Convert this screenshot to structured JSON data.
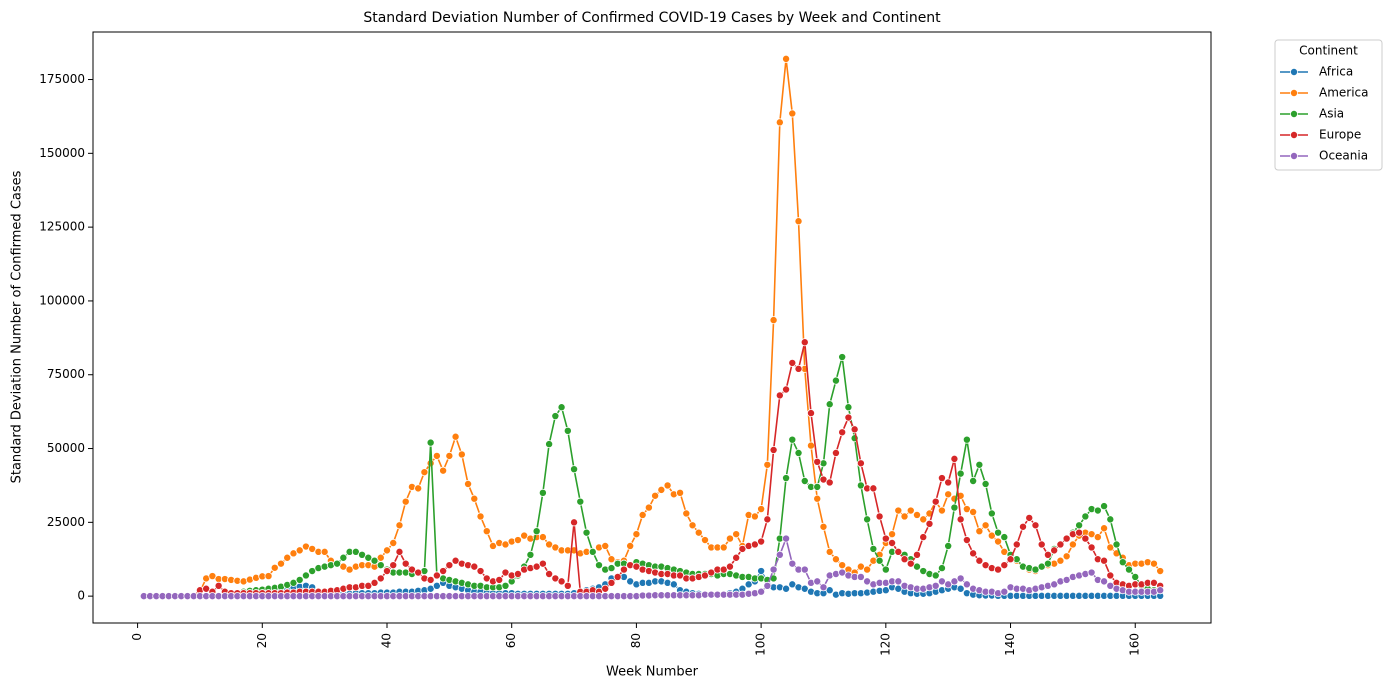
{
  "chart_data": {
    "type": "line",
    "title": "Standard Deviation Number of Confirmed COVID-19 Cases by Week and Continent",
    "x_label": "Week Number",
    "y_label": "Standard Deviation Number of Confirmed Cases",
    "legend_title": "Continent",
    "legend_position": "outside-upper-right",
    "marker": "circle",
    "xlim": [
      -7.15,
      172.15
    ],
    "ylim": [
      -9100,
      191100
    ],
    "xticks": [
      0,
      20,
      40,
      60,
      80,
      100,
      120,
      140,
      160
    ],
    "yticks": [
      0,
      25000,
      50000,
      75000,
      100000,
      125000,
      150000,
      175000
    ],
    "x": [
      1,
      2,
      3,
      4,
      5,
      6,
      7,
      8,
      9,
      10,
      11,
      12,
      13,
      14,
      15,
      16,
      17,
      18,
      19,
      20,
      21,
      22,
      23,
      24,
      25,
      26,
      27,
      28,
      29,
      30,
      31,
      32,
      33,
      34,
      35,
      36,
      37,
      38,
      39,
      40,
      41,
      42,
      43,
      44,
      45,
      46,
      47,
      48,
      49,
      50,
      51,
      52,
      53,
      54,
      55,
      56,
      57,
      58,
      59,
      60,
      61,
      62,
      63,
      64,
      65,
      66,
      67,
      68,
      69,
      70,
      71,
      72,
      73,
      74,
      75,
      76,
      77,
      78,
      79,
      80,
      81,
      82,
      83,
      84,
      85,
      86,
      87,
      88,
      89,
      90,
      91,
      92,
      93,
      94,
      95,
      96,
      97,
      98,
      99,
      100,
      101,
      102,
      103,
      104,
      105,
      106,
      107,
      108,
      109,
      110,
      111,
      112,
      113,
      114,
      115,
      116,
      117,
      118,
      119,
      120,
      121,
      122,
      123,
      124,
      125,
      126,
      127,
      128,
      129,
      130,
      131,
      132,
      133,
      134,
      135,
      136,
      137,
      138,
      139,
      140,
      141,
      142,
      143,
      144,
      145,
      146,
      147,
      148,
      149,
      150,
      151,
      152,
      153,
      154,
      155,
      156,
      157,
      158,
      159,
      160,
      161,
      162,
      163,
      164
    ],
    "series": [
      {
        "name": "Africa",
        "color": "#1f77b4",
        "values": [
          0,
          0,
          0,
          0,
          0,
          0,
          0,
          0,
          0,
          0,
          0,
          0,
          0,
          0,
          0,
          0,
          500,
          800,
          1000,
          1200,
          1500,
          1800,
          2000,
          2500,
          3000,
          3200,
          3500,
          3000,
          1500,
          1000,
          800,
          800,
          800,
          800,
          1000,
          1000,
          1000,
          1000,
          1200,
          1200,
          1200,
          1500,
          1500,
          1500,
          1800,
          2000,
          2500,
          3500,
          4500,
          3500,
          3000,
          2500,
          2000,
          1500,
          1500,
          1200,
          1000,
          1000,
          1000,
          1000,
          800,
          800,
          800,
          800,
          800,
          800,
          800,
          800,
          800,
          1000,
          1500,
          2000,
          2500,
          3000,
          4000,
          6000,
          6500,
          6500,
          5000,
          4000,
          4500,
          4500,
          5000,
          5000,
          4500,
          4000,
          2000,
          1500,
          1000,
          800,
          500,
          500,
          500,
          500,
          1000,
          1500,
          2500,
          4000,
          5000,
          8500,
          5000,
          3000,
          3000,
          2500,
          4000,
          3000,
          2500,
          1500,
          1000,
          1000,
          2000,
          500,
          1000,
          800,
          1000,
          1000,
          1200,
          1500,
          1800,
          2000,
          3000,
          2500,
          1500,
          1000,
          800,
          800,
          1000,
          1500,
          2000,
          2500,
          3000,
          2500,
          1000,
          500,
          300,
          200,
          200,
          100,
          100,
          100,
          100,
          100,
          100,
          100,
          100,
          100,
          100,
          100,
          100,
          100,
          100,
          100,
          100,
          100,
          100,
          100,
          100,
          100,
          100,
          100,
          100,
          100,
          100,
          100
        ]
      },
      {
        "name": "America",
        "color": "#ff7f0e",
        "values": [
          0,
          0,
          0,
          0,
          0,
          0,
          0,
          0,
          0,
          1500,
          6000,
          6800,
          5800,
          5800,
          5500,
          5200,
          5000,
          5600,
          6200,
          6700,
          6800,
          9600,
          11000,
          13000,
          14500,
          15500,
          16800,
          16000,
          15000,
          15000,
          12000,
          11000,
          10000,
          9000,
          10000,
          10500,
          10500,
          10000,
          13000,
          15500,
          18000,
          24000,
          32000,
          37000,
          36500,
          42000,
          45000,
          47500,
          42500,
          47500,
          54000,
          48000,
          38000,
          33000,
          27000,
          22000,
          17000,
          18000,
          17500,
          18500,
          19000,
          20500,
          19500,
          20000,
          20000,
          17500,
          16500,
          15500,
          15500,
          15500,
          14500,
          15000,
          15000,
          16500,
          17000,
          12500,
          11500,
          12000,
          17000,
          21000,
          27500,
          30000,
          34000,
          36000,
          37500,
          34500,
          35000,
          28000,
          24000,
          21500,
          19000,
          16500,
          16500,
          16500,
          19500,
          21000,
          17000,
          27500,
          27000,
          29500,
          44500,
          93500,
          160500,
          182000,
          163500,
          127000,
          77000,
          51000,
          33000,
          23500,
          15000,
          12500,
          10500,
          9000,
          8000,
          10000,
          9000,
          12000,
          14000,
          18000,
          21000,
          29000,
          27000,
          29000,
          27500,
          26000,
          28000,
          32000,
          29000,
          34500,
          33000,
          34000,
          29500,
          28500,
          22000,
          24000,
          20500,
          18500,
          15000,
          14000,
          12000,
          10000,
          9000,
          8500,
          10000,
          10500,
          11000,
          12000,
          13500,
          17500,
          20500,
          21500,
          21000,
          20000,
          23000,
          16500,
          14500,
          13000,
          10500,
          11000,
          11000,
          11500,
          11000,
          8500
        ]
      },
      {
        "name": "Asia",
        "color": "#2ca02c",
        "values": [
          0,
          0,
          0,
          0,
          0,
          0,
          0,
          0,
          0,
          0,
          0,
          0,
          0,
          0,
          0,
          0,
          1500,
          1800,
          2000,
          2200,
          2500,
          2800,
          3200,
          3800,
          4500,
          5500,
          7000,
          8500,
          9500,
          10000,
          10500,
          11000,
          13000,
          15000,
          15000,
          14000,
          13000,
          12000,
          10500,
          9000,
          8000,
          8000,
          8000,
          7500,
          8000,
          8500,
          52000,
          7000,
          6000,
          5500,
          5000,
          4500,
          4000,
          3500,
          3500,
          3000,
          3000,
          3000,
          3500,
          5000,
          7000,
          10000,
          14000,
          22000,
          35000,
          51500,
          61000,
          64000,
          56000,
          43000,
          32000,
          21500,
          15000,
          10500,
          9000,
          9500,
          11000,
          11000,
          10500,
          11500,
          11000,
          10500,
          10000,
          10000,
          9500,
          9000,
          8500,
          8000,
          7500,
          7500,
          7500,
          7500,
          7000,
          7500,
          7500,
          7000,
          6500,
          6500,
          6000,
          6000,
          5500,
          6000,
          19500,
          40000,
          53000,
          48500,
          39000,
          37000,
          37000,
          45000,
          65000,
          73000,
          81000,
          64000,
          53500,
          37500,
          26000,
          16000,
          12000,
          9000,
          15000,
          15000,
          14000,
          12500,
          10000,
          8500,
          7500,
          7000,
          9500,
          17000,
          30000,
          41500,
          53000,
          39000,
          44500,
          38000,
          28000,
          21500,
          20000,
          14000,
          12500,
          10000,
          9500,
          9000,
          10000,
          11000,
          16000,
          17500,
          19500,
          21500,
          24000,
          27000,
          29500,
          29000,
          30500,
          26000,
          17500,
          11500,
          9000,
          6500,
          3500,
          2500,
          2000,
          2000
        ]
      },
      {
        "name": "Europe",
        "color": "#d62728",
        "values": [
          0,
          0,
          0,
          0,
          0,
          0,
          0,
          0,
          0,
          2000,
          2500,
          1500,
          3500,
          1500,
          1000,
          1000,
          1000,
          1000,
          1000,
          1000,
          1000,
          1000,
          1000,
          1200,
          1200,
          1500,
          1500,
          1500,
          1500,
          1500,
          1800,
          2000,
          2500,
          3000,
          3000,
          3500,
          3500,
          4500,
          6000,
          8500,
          10500,
          15000,
          11000,
          9000,
          8000,
          6000,
          5500,
          7000,
          8500,
          10500,
          12000,
          11000,
          10500,
          10000,
          8500,
          6000,
          5000,
          5500,
          8000,
          7000,
          7500,
          9000,
          9500,
          10000,
          11000,
          7500,
          6000,
          5000,
          3500,
          25000,
          1500,
          1500,
          2000,
          1500,
          2500,
          4500,
          6500,
          9000,
          10500,
          10000,
          9000,
          8500,
          8000,
          7500,
          7500,
          7000,
          7000,
          6000,
          6000,
          6500,
          7000,
          8000,
          9000,
          9000,
          10000,
          13000,
          16000,
          17000,
          17500,
          18500,
          26000,
          49500,
          68000,
          70000,
          79000,
          77000,
          86000,
          62000,
          45500,
          39500,
          38500,
          48500,
          55500,
          60500,
          56500,
          45000,
          36500,
          36500,
          27000,
          19500,
          18000,
          15000,
          12500,
          11000,
          14000,
          20000,
          24500,
          32000,
          40000,
          38500,
          46500,
          26000,
          19000,
          14500,
          12000,
          10500,
          9500,
          9000,
          10500,
          12500,
          17500,
          23500,
          26500,
          24000,
          17500,
          14000,
          15500,
          17500,
          19500,
          21000,
          21500,
          19500,
          16500,
          12500,
          12000,
          7000,
          4500,
          4000,
          3500,
          4000,
          4000,
          4500,
          4500,
          3500
        ]
      },
      {
        "name": "Oceania",
        "color": "#9467bd",
        "values": [
          0,
          0,
          0,
          0,
          0,
          0,
          0,
          0,
          0,
          0,
          0,
          0,
          0,
          0,
          0,
          0,
          0,
          0,
          0,
          0,
          0,
          0,
          0,
          0,
          0,
          0,
          0,
          0,
          0,
          0,
          0,
          0,
          0,
          0,
          0,
          0,
          0,
          0,
          0,
          0,
          0,
          0,
          0,
          0,
          0,
          0,
          0,
          0,
          0,
          0,
          0,
          0,
          0,
          0,
          0,
          0,
          0,
          0,
          0,
          0,
          0,
          0,
          0,
          0,
          0,
          0,
          0,
          0,
          0,
          0,
          0,
          0,
          0,
          0,
          0,
          0,
          0,
          0,
          0,
          0,
          200,
          200,
          300,
          300,
          300,
          300,
          300,
          300,
          300,
          300,
          500,
          500,
          500,
          500,
          500,
          500,
          500,
          800,
          1000,
          1500,
          3500,
          9000,
          14000,
          19500,
          11000,
          9000,
          9000,
          4500,
          5000,
          3000,
          7000,
          7500,
          8000,
          7000,
          6500,
          6500,
          5000,
          4000,
          4500,
          4500,
          5000,
          5000,
          3500,
          3000,
          2500,
          2500,
          3000,
          3500,
          5000,
          4000,
          5000,
          6000,
          4000,
          2500,
          2000,
          1500,
          1500,
          1000,
          1500,
          3000,
          2500,
          2500,
          2000,
          2500,
          3000,
          3500,
          4000,
          5000,
          5500,
          6500,
          7000,
          7500,
          8000,
          5500,
          5000,
          3500,
          2500,
          2000,
          1500,
          1500,
          1500,
          1500,
          1500,
          2000
        ]
      }
    ]
  }
}
